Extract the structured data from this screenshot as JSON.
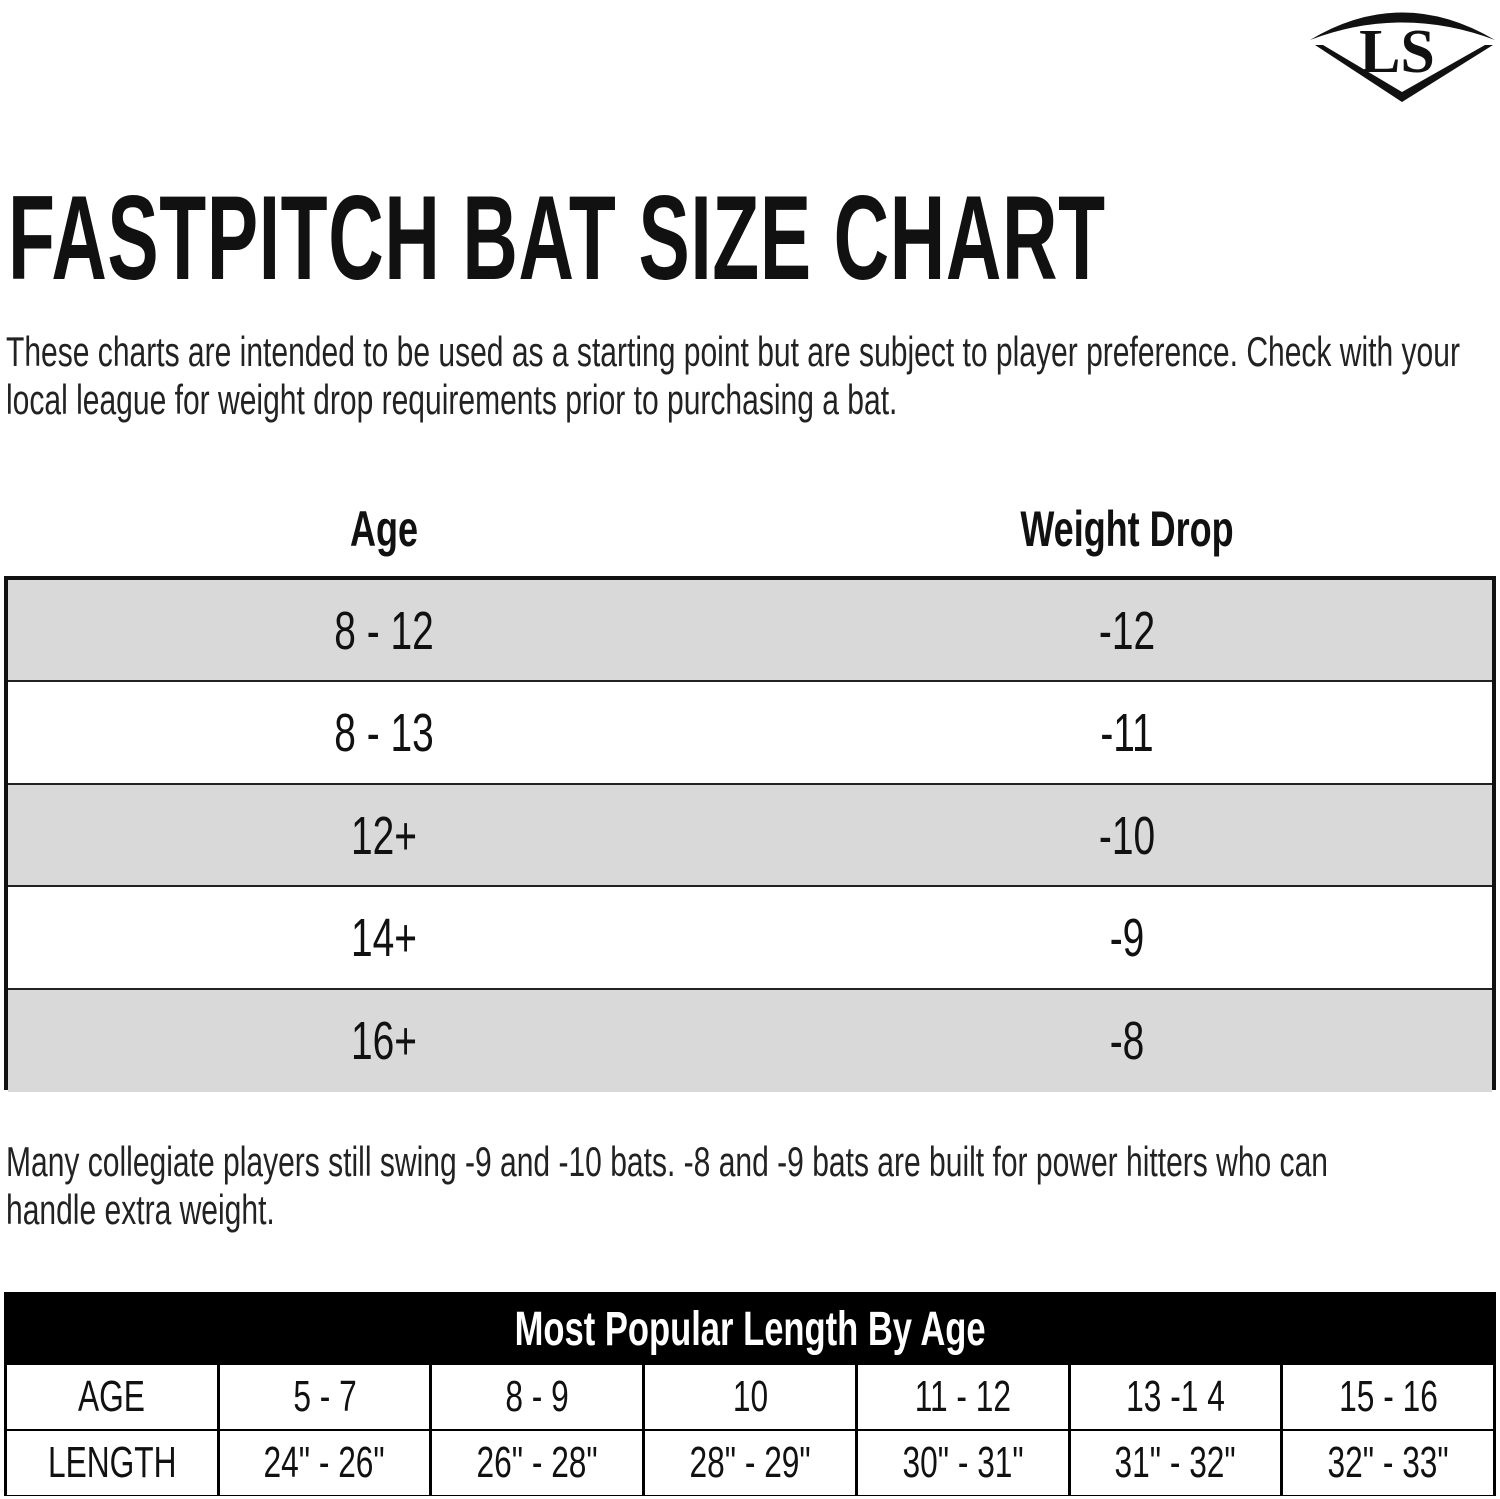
{
  "logo": {
    "text": "LS",
    "icon": "louisville-slugger-logo"
  },
  "title": "FASTPITCH BAT SIZE CHART",
  "intro": "These charts are intended to be used as a starting point but are subject to player preference. Check with your local league for weight drop requirements prior to purchasing a bat.",
  "drop_table": {
    "headers": [
      "Age",
      "Weight Drop"
    ],
    "rows": [
      [
        "8 - 12",
        "-12"
      ],
      [
        "8 - 13",
        "-11"
      ],
      [
        "12+",
        "-10"
      ],
      [
        "14+",
        "-9"
      ],
      [
        "16+",
        "-8"
      ]
    ],
    "stripe_color": "#d9d9d9"
  },
  "note": "Many collegiate players still swing -9 and -10 bats. -8 and -9 bats are built for power hitters who can handle extra weight.",
  "length_table": {
    "title": "Most Popular Length By Age",
    "rows": [
      [
        "AGE",
        "5 - 7",
        "8 - 9",
        "10",
        "11 - 12",
        "13 -1 4",
        "15 - 16"
      ],
      [
        "LENGTH",
        "24\" - 26\"",
        "26\" - 28\"",
        "28\" - 29\"",
        "30\" - 31\"",
        "31\" - 32\"",
        "32\" - 33\""
      ]
    ]
  }
}
